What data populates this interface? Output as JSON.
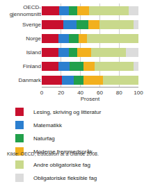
{
  "chart_data": {
    "type": "bar",
    "orientation": "horizontal",
    "stacked": true,
    "categories": [
      "OECD-gjennomsnitt",
      "Sverige",
      "Norge",
      "Island",
      "Finland",
      "Danmark"
    ],
    "series": [
      {
        "name": "Lesing, skriving og litteratur",
        "color": "#c8102e",
        "values": [
          18,
          22,
          17,
          17,
          17,
          21
        ]
      },
      {
        "name": "Matematikk",
        "color": "#2b7fcf",
        "values": [
          10,
          14,
          11,
          11,
          12,
          12
        ]
      },
      {
        "name": "Naturfag",
        "color": "#22a04b",
        "values": [
          9,
          12,
          10,
          9,
          14,
          10
        ]
      },
      {
        "name": "Moderne fremmedspråk",
        "color": "#f2b01e",
        "values": [
          12,
          12,
          9,
          14,
          12,
          20
        ]
      },
      {
        "name": "Andre obligatoriske fag",
        "color": "#c9d98c",
        "values": [
          41,
          35,
          53,
          36,
          40,
          37
        ]
      },
      {
        "name": "Obligatoriske fleksible fag",
        "color": "#dcdcdc",
        "values": [
          10,
          5,
          0,
          13,
          5,
          0
        ]
      }
    ],
    "xlabel": "Prosent",
    "xlim": [
      0,
      100
    ],
    "xticks": [
      0,
      20,
      40,
      60,
      80,
      100
    ],
    "grid": true,
    "legend": "bottom",
    "annotations": [
      "Kilde: OECD, Education at a Glance 2008."
    ]
  }
}
